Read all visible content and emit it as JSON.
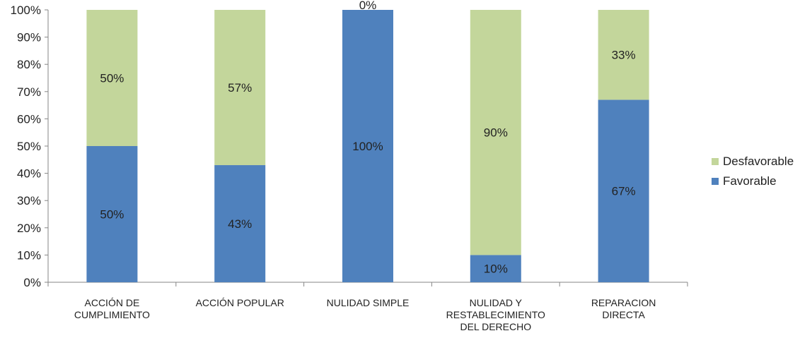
{
  "chart_data": {
    "type": "bar",
    "stacked": true,
    "categories": [
      [
        "ACCIÓN DE",
        "CUMPLIMIENTO"
      ],
      [
        "ACCIÓN POPULAR"
      ],
      [
        "NULIDAD SIMPLE"
      ],
      [
        "NULIDAD Y",
        "RESTABLECIMIENTO",
        "DEL DERECHO"
      ],
      [
        "REPARACION",
        "DIRECTA"
      ]
    ],
    "series": [
      {
        "name": "Favorable",
        "color": "#4f81bd",
        "values": [
          50,
          43,
          100,
          10,
          67
        ],
        "labels": [
          "50%",
          "43%",
          "100%",
          "10%",
          "67%"
        ]
      },
      {
        "name": "Desfavorable",
        "color": "#c3d69b",
        "values": [
          50,
          57,
          0,
          90,
          33
        ],
        "labels": [
          "50%",
          "57%",
          "0%",
          "90%",
          "33%"
        ]
      }
    ],
    "ylim": [
      0,
      100
    ],
    "yticks": [
      "0%",
      "10%",
      "20%",
      "30%",
      "40%",
      "50%",
      "60%",
      "70%",
      "80%",
      "90%",
      "100%"
    ],
    "legend_position": "right",
    "grid": false
  },
  "legend": [
    {
      "label": "Desfavorable",
      "color": "#c3d69b"
    },
    {
      "label": "Favorable",
      "color": "#4f81bd"
    }
  ]
}
